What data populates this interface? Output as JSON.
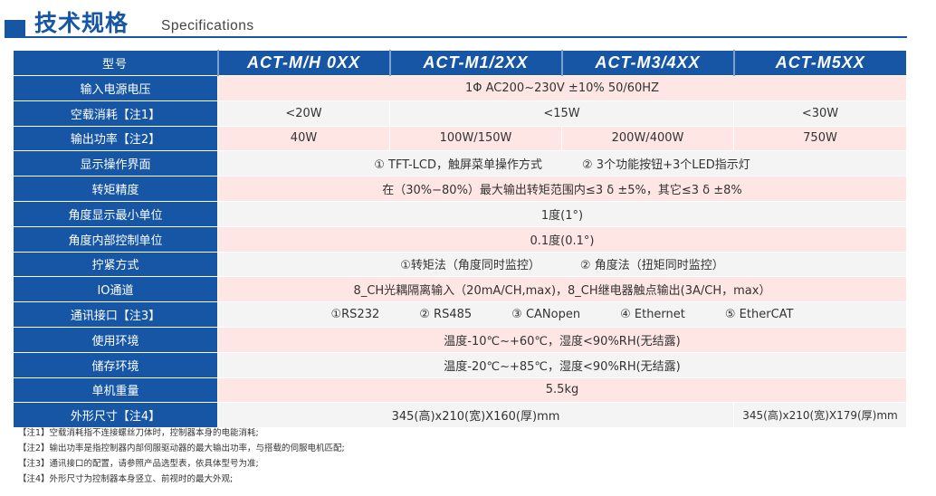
{
  "header": {
    "title": "技术规格",
    "subtitle": "Specifications",
    "accent": "#1656a5"
  },
  "table": {
    "columns": [
      "型号",
      "ACT-M/H 0XX",
      "ACT-M1/2XX",
      "ACT-M3/4XX",
      "ACT-M5XX"
    ],
    "rows": {
      "input_voltage": {
        "label": "输入电源电压",
        "value": "1Φ AC200~230V ±10% 50/60HZ"
      },
      "idle_power": {
        "label": "空载消耗【注1】",
        "values": [
          "<20W",
          "<15W",
          "<30W"
        ]
      },
      "output_power": {
        "label": "输出功率【注2】",
        "values": [
          "40W",
          "100W/150W",
          "200W/400W",
          "750W"
        ]
      },
      "display": {
        "label": "显示操作界面",
        "values": [
          "① TFT-LCD，触屏菜单操作方式",
          "② 3个功能按钮+3个LED指示灯"
        ]
      },
      "torque_accuracy": {
        "label": "转矩精度",
        "value": "在（30%−80%）最大输出转矩范围内≤3 δ ±5%，其它≤3 δ ±8%"
      },
      "angle_display": {
        "label": "角度显示最小单位",
        "value": "1度(1°)"
      },
      "angle_control": {
        "label": "角度内部控制单位",
        "value": "0.1度(0.1°)"
      },
      "tightening": {
        "label": "拧紧方式",
        "values": [
          "①转矩法（角度同时监控）",
          "② 角度法（扭矩同时监控）"
        ]
      },
      "io": {
        "label": "IO通道",
        "value": "8_CH光耦隔离输入（20mA/CH,max)，8_CH继电器触点输出(3A/CH，max）"
      },
      "comm": {
        "label": "通讯接口【注3】",
        "values": [
          "①RS232",
          "② RS485",
          "③ CANopen",
          "④ Ethernet",
          "⑤ EtherCAT"
        ]
      },
      "operating_env": {
        "label": "使用环境",
        "value": "温度-10℃~+60℃，湿度<90%RH(无结露)"
      },
      "storage_env": {
        "label": "储存环境",
        "value": "温度-20℃~+85℃，湿度<90%RH(无结露)"
      },
      "weight": {
        "label": "单机重量",
        "value": "5.5kg"
      },
      "dimensions": {
        "label": "外形尺寸【注4】",
        "values": [
          "345(高)x210(宽)X160(厚)mm",
          "345(高)x210(宽)X179(厚)mm"
        ]
      }
    }
  },
  "notes": [
    "【注1】空载消耗指不连接螺丝刀体时，控制器本身的电能消耗;",
    "【注2】输出功率是指控制器内部伺服驱动器的最大输出功率，与搭载的伺服电机匹配;",
    "【注3】通讯接口的配置，请参照产品选型表，依具体型号为准;",
    "【注4】外形尺寸为控制器本身竖立、前视时的最大外观;"
  ]
}
